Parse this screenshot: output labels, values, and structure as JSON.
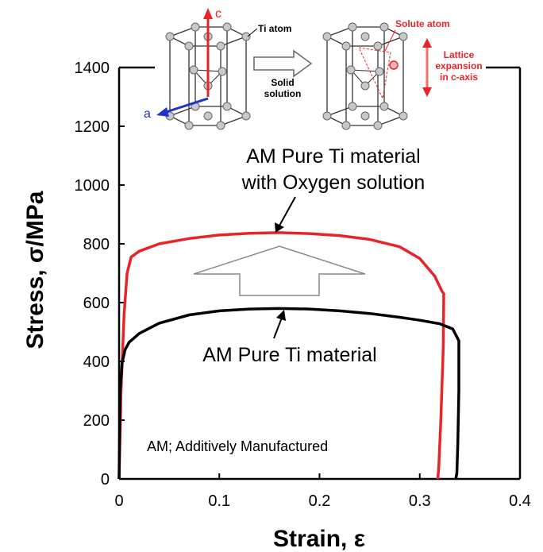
{
  "chart_data": {
    "type": "line",
    "xlabel": "Strain, ε",
    "ylabel": "Stress, σ/MPa",
    "xlim": [
      0,
      0.4
    ],
    "ylim": [
      0,
      1400
    ],
    "xticks": [
      "0",
      "0.1",
      "0.2",
      "0.3",
      "0.4"
    ],
    "yticks": [
      "0",
      "200",
      "400",
      "600",
      "800",
      "1000",
      "1200",
      "1400"
    ],
    "grid": false,
    "series": [
      {
        "name": "AM Pure Ti material with Oxygen solution",
        "color": "#e8242a",
        "x": [
          0,
          0.002,
          0.005,
          0.008,
          0.012,
          0.02,
          0.04,
          0.07,
          0.1,
          0.13,
          0.16,
          0.19,
          0.22,
          0.25,
          0.28,
          0.3,
          0.315,
          0.322,
          0.324,
          0.3235,
          0.321,
          0.319,
          0.318
        ],
        "y": [
          0,
          300,
          560,
          700,
          755,
          775,
          800,
          818,
          830,
          836,
          838,
          835,
          828,
          815,
          790,
          750,
          690,
          640,
          630,
          450,
          200,
          40,
          0
        ]
      },
      {
        "name": "AM Pure Ti material",
        "color": "#000000",
        "x": [
          0,
          0.001,
          0.003,
          0.006,
          0.01,
          0.02,
          0.04,
          0.07,
          0.1,
          0.13,
          0.16,
          0.19,
          0.22,
          0.25,
          0.28,
          0.3,
          0.32,
          0.333,
          0.339,
          0.339,
          0.338,
          0.337,
          0.336
        ],
        "y": [
          0,
          300,
          395,
          440,
          465,
          495,
          530,
          558,
          572,
          578,
          580,
          578,
          572,
          563,
          550,
          540,
          528,
          510,
          470,
          300,
          120,
          20,
          0
        ]
      }
    ],
    "annotations": [
      {
        "lines": [
          "AM Pure Ti material",
          "with Oxygen solution"
        ]
      },
      {
        "text": "AM Pure Ti material"
      },
      {
        "text": "AM; Additively Manufactured"
      }
    ]
  },
  "inset": {
    "ti_atom": "Ti atom",
    "axis_c": "c",
    "axis_a": "a",
    "solid_solution": [
      "Solid",
      "solution"
    ],
    "solute_atom": "Solute atom",
    "lattice_expansion": [
      "Lattice",
      "expansion",
      "in c-axis"
    ]
  }
}
